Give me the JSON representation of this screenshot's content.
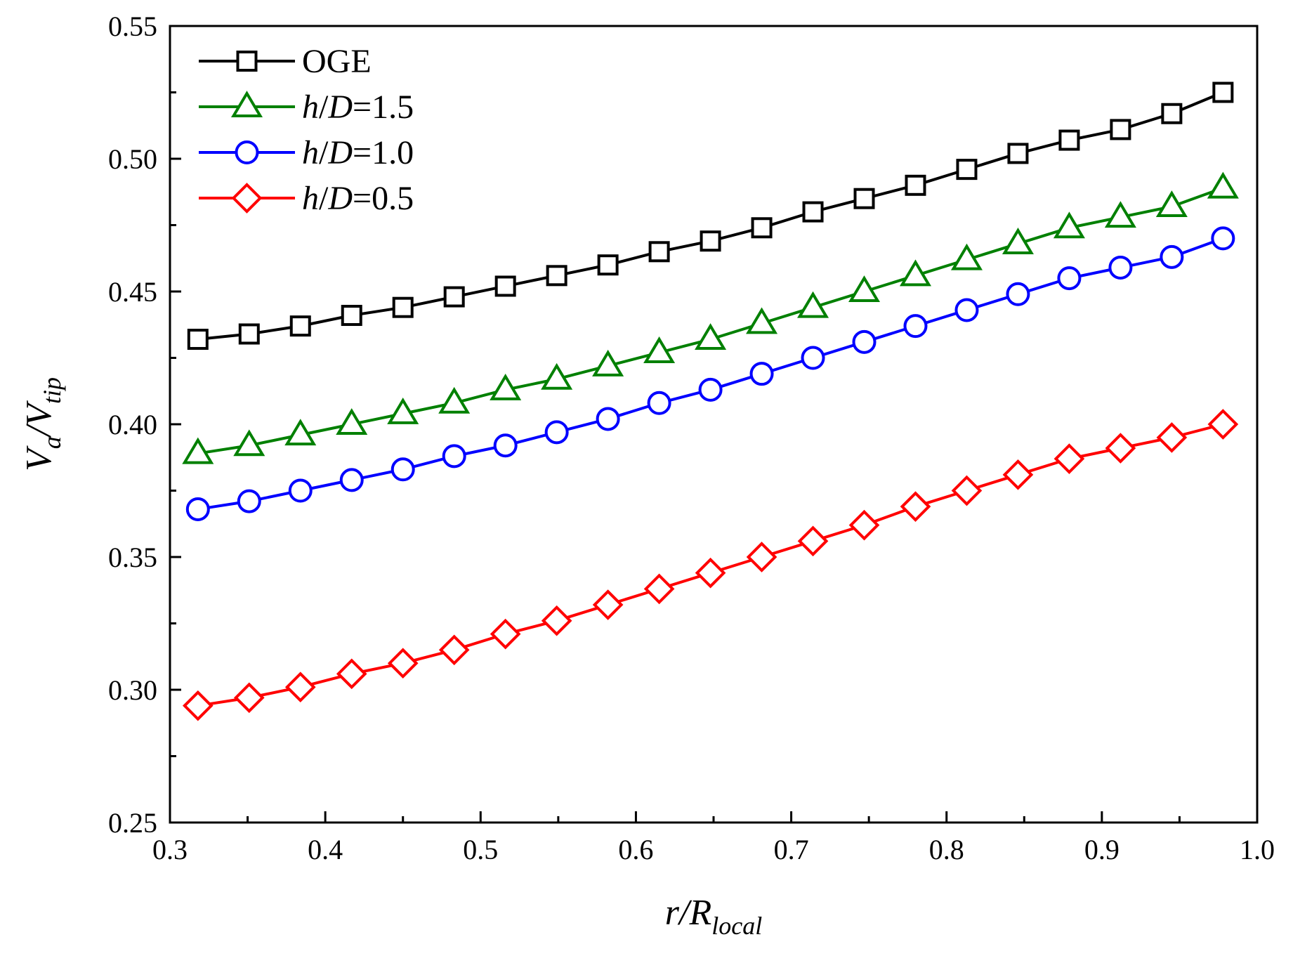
{
  "chart_data": {
    "type": "line",
    "title": "",
    "xlabel": {
      "main": "r/R",
      "sub": "local"
    },
    "ylabel": {
      "v1": "V",
      "sub1": "a",
      "slash": "/",
      "v2": "V",
      "sub2": "tip"
    },
    "xlim": [
      0.3,
      1.0
    ],
    "ylim": [
      0.25,
      0.55
    ],
    "xticks": [
      0.3,
      0.4,
      0.5,
      0.6,
      0.7,
      0.8,
      0.9,
      1.0
    ],
    "xtick_labels": [
      "0.3",
      "0.4",
      "0.5",
      "0.6",
      "0.7",
      "0.8",
      "0.9",
      "1.0"
    ],
    "yticks": [
      0.25,
      0.3,
      0.35,
      0.4,
      0.45,
      0.5,
      0.55
    ],
    "ytick_labels": [
      "0.25",
      "0.30",
      "0.35",
      "0.40",
      "0.45",
      "0.50",
      "0.55"
    ],
    "grid": false,
    "legend_position": "top-left",
    "x": [
      0.318,
      0.351,
      0.384,
      0.417,
      0.45,
      0.483,
      0.516,
      0.549,
      0.582,
      0.615,
      0.648,
      0.681,
      0.714,
      0.747,
      0.78,
      0.813,
      0.846,
      0.879,
      0.912,
      0.945,
      0.978
    ],
    "series": [
      {
        "name": "OGE",
        "legend": {
          "prefix": "OGE",
          "italic": "",
          "suffix": ""
        },
        "color": "#000000",
        "marker": "square",
        "values": [
          0.432,
          0.434,
          0.437,
          0.441,
          0.444,
          0.448,
          0.452,
          0.456,
          0.46,
          0.465,
          0.469,
          0.474,
          0.48,
          0.485,
          0.49,
          0.496,
          0.502,
          0.507,
          0.511,
          0.517,
          0.525
        ]
      },
      {
        "name": "h/D=1.5",
        "legend": {
          "prefix": "h/",
          "italic": "D",
          "suffix": "=1.5"
        },
        "color": "#008000",
        "marker": "triangle",
        "values": [
          0.389,
          0.392,
          0.396,
          0.4,
          0.404,
          0.408,
          0.413,
          0.417,
          0.422,
          0.427,
          0.432,
          0.438,
          0.444,
          0.45,
          0.456,
          0.462,
          0.468,
          0.474,
          0.478,
          0.482,
          0.489
        ]
      },
      {
        "name": "h/D=1.0",
        "legend": {
          "prefix": "h/",
          "italic": "D",
          "suffix": "=1.0"
        },
        "color": "#0000ff",
        "marker": "circle",
        "values": [
          0.368,
          0.371,
          0.375,
          0.379,
          0.383,
          0.388,
          0.392,
          0.397,
          0.402,
          0.408,
          0.413,
          0.419,
          0.425,
          0.431,
          0.437,
          0.443,
          0.449,
          0.455,
          0.459,
          0.463,
          0.47
        ]
      },
      {
        "name": "h/D=0.5",
        "legend": {
          "prefix": "h/",
          "italic": "D",
          "suffix": "=0.5"
        },
        "color": "#ff0000",
        "marker": "diamond",
        "values": [
          0.294,
          0.297,
          0.301,
          0.306,
          0.31,
          0.315,
          0.321,
          0.326,
          0.332,
          0.338,
          0.344,
          0.35,
          0.356,
          0.362,
          0.369,
          0.375,
          0.381,
          0.387,
          0.391,
          0.395,
          0.4
        ]
      }
    ]
  }
}
